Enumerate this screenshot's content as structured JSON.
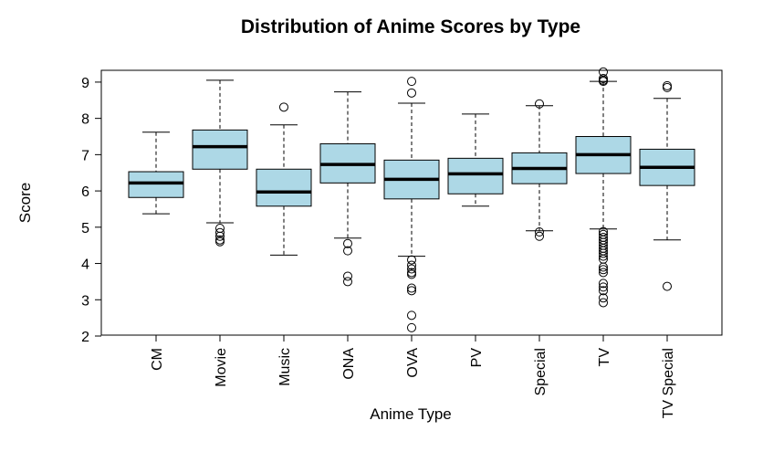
{
  "chart_data": {
    "type": "boxplot",
    "title": "Distribution of Anime Scores by Type",
    "xlabel": "Anime Type",
    "ylabel": "Score",
    "ylim": [
      2,
      9.3
    ],
    "yticks": [
      "2",
      "3",
      "4",
      "5",
      "6",
      "7",
      "8",
      "9"
    ],
    "grid": false,
    "box_color": "#add8e6",
    "categories": [
      "CM",
      "Movie",
      "Music",
      "ONA",
      "OVA",
      "PV",
      "Special",
      "TV",
      "TV Special"
    ],
    "boxes": [
      {
        "whisker_low": 5.37,
        "q1": 5.82,
        "median": 6.22,
        "q3": 6.53,
        "whisker_high": 7.62,
        "outliers": []
      },
      {
        "whisker_low": 5.12,
        "q1": 6.6,
        "median": 7.22,
        "q3": 7.68,
        "whisker_high": 9.05,
        "outliers": [
          4.97,
          4.85,
          4.75,
          4.65,
          4.6
        ]
      },
      {
        "whisker_low": 4.23,
        "q1": 5.58,
        "median": 5.97,
        "q3": 6.6,
        "whisker_high": 7.82,
        "outliers": [
          8.31
        ]
      },
      {
        "whisker_low": 4.7,
        "q1": 6.22,
        "median": 6.73,
        "q3": 7.3,
        "whisker_high": 8.73,
        "outliers": [
          4.55,
          4.35,
          3.65,
          3.5
        ]
      },
      {
        "whisker_low": 4.2,
        "q1": 5.78,
        "median": 6.32,
        "q3": 6.85,
        "whisker_high": 8.42,
        "outliers": [
          9.02,
          8.7,
          4.1,
          3.95,
          3.85,
          3.75,
          3.7,
          3.32,
          3.25,
          2.57,
          2.23
        ]
      },
      {
        "whisker_low": 5.58,
        "q1": 5.92,
        "median": 6.47,
        "q3": 6.9,
        "whisker_high": 8.12,
        "outliers": []
      },
      {
        "whisker_low": 4.9,
        "q1": 6.2,
        "median": 6.62,
        "q3": 7.05,
        "whisker_high": 8.35,
        "outliers": [
          8.4,
          4.87,
          4.75
        ]
      },
      {
        "whisker_low": 4.95,
        "q1": 6.48,
        "median": 7.0,
        "q3": 7.5,
        "whisker_high": 9.02,
        "outliers": [
          9.28,
          9.1,
          9.05,
          9.02,
          4.88,
          4.8,
          4.72,
          4.65,
          4.58,
          4.5,
          4.42,
          4.35,
          4.28,
          4.2,
          4.12,
          3.9,
          3.83,
          3.75,
          3.45,
          3.35,
          3.25,
          3.05,
          2.92
        ]
      },
      {
        "whisker_low": 4.65,
        "q1": 6.15,
        "median": 6.65,
        "q3": 7.15,
        "whisker_high": 8.55,
        "outliers": [
          8.9,
          8.85,
          3.37
        ]
      }
    ]
  }
}
